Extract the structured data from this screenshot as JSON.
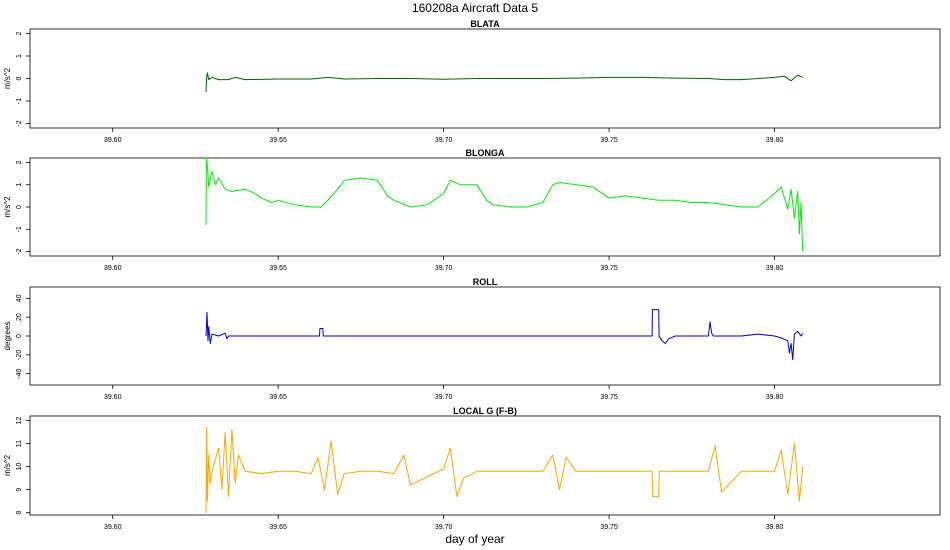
{
  "figure": {
    "title": "160208a   Aircraft Data 5",
    "xlabel": "day of year"
  },
  "colors": {
    "blata": "#006400",
    "blonga": "#00ee00",
    "roll": "#0000dd",
    "localg": "#ffa500",
    "axes": "#000000"
  },
  "chart_data": [
    {
      "type": "line",
      "title": "BLATA",
      "ylabel": "m/s^2",
      "xlim": [
        39.575,
        39.85
      ],
      "ylim": [
        -2.2,
        2.2
      ],
      "xticks": [
        39.6,
        39.65,
        39.7,
        39.75,
        39.8
      ],
      "xtick_labels": [
        "39.60",
        "39.65",
        "39.70",
        "39.75",
        "39.80"
      ],
      "yticks": [
        -2,
        -1,
        0,
        1,
        2
      ],
      "ytick_labels": [
        "-2",
        "-1",
        "0",
        "1",
        "2"
      ],
      "series": [
        {
          "x": [
            39.6282,
            39.6284,
            39.6286,
            39.629,
            39.63,
            39.632,
            39.635,
            39.637,
            39.64,
            39.65,
            39.66,
            39.665,
            39.67,
            39.68,
            39.69,
            39.7,
            39.71,
            39.72,
            39.73,
            39.74,
            39.75,
            39.76,
            39.77,
            39.78,
            39.785,
            39.79,
            39.795,
            39.8,
            39.803,
            39.805,
            39.807,
            39.8085
          ],
          "y": [
            -0.6,
            0.1,
            0.25,
            -0.05,
            0.05,
            -0.05,
            -0.05,
            0.05,
            -0.05,
            -0.02,
            -0.02,
            0.05,
            -0.02,
            0.0,
            0.0,
            -0.03,
            0.0,
            0.0,
            0.0,
            0.02,
            0.05,
            0.05,
            0.02,
            0.0,
            -0.05,
            -0.05,
            0.0,
            0.05,
            0.1,
            -0.1,
            0.15,
            0.05
          ]
        }
      ]
    },
    {
      "type": "line",
      "title": "BLONGA",
      "ylabel": "m/s^2",
      "xlim": [
        39.575,
        39.85
      ],
      "ylim": [
        -2.2,
        2.2
      ],
      "xticks": [
        39.6,
        39.65,
        39.7,
        39.75,
        39.8
      ],
      "xtick_labels": [
        "39.60",
        "39.65",
        "39.70",
        "39.75",
        "39.80"
      ],
      "yticks": [
        -2,
        -1,
        0,
        1,
        2
      ],
      "ytick_labels": [
        "-2",
        "-1",
        "0",
        "1",
        "2"
      ],
      "series": [
        {
          "x": [
            39.6282,
            39.6283,
            39.6286,
            39.629,
            39.63,
            39.631,
            39.632,
            39.634,
            39.636,
            39.64,
            39.643,
            39.645,
            39.648,
            39.65,
            39.655,
            39.66,
            39.663,
            39.665,
            39.668,
            39.67,
            39.675,
            39.68,
            39.683,
            39.685,
            39.69,
            39.695,
            39.698,
            39.7,
            39.702,
            39.705,
            39.71,
            39.713,
            39.715,
            39.72,
            39.725,
            39.73,
            39.733,
            39.735,
            39.74,
            39.745,
            39.748,
            39.75,
            39.755,
            39.76,
            39.765,
            39.77,
            39.775,
            39.78,
            39.785,
            39.79,
            39.795,
            39.8,
            39.802,
            39.804,
            39.805,
            39.806,
            39.807,
            39.8075,
            39.808,
            39.8085
          ],
          "y": [
            -0.8,
            2.2,
            1.8,
            0.9,
            1.6,
            1.0,
            1.3,
            0.8,
            0.7,
            0.8,
            0.6,
            0.4,
            0.2,
            0.3,
            0.1,
            0.0,
            0.0,
            0.3,
            0.8,
            1.2,
            1.3,
            1.2,
            0.5,
            0.3,
            0.0,
            0.1,
            0.4,
            0.6,
            1.2,
            1.0,
            1.0,
            0.3,
            0.1,
            0.0,
            0.0,
            0.2,
            1.0,
            1.1,
            1.0,
            0.9,
            0.6,
            0.4,
            0.5,
            0.4,
            0.3,
            0.3,
            0.2,
            0.2,
            0.1,
            0.0,
            0.0,
            0.6,
            0.9,
            -0.1,
            0.8,
            -0.5,
            0.7,
            -1.2,
            0.2,
            -2.0
          ]
        }
      ]
    },
    {
      "type": "line",
      "title": "ROLL",
      "ylabel": "degrees",
      "xlim": [
        39.575,
        39.85
      ],
      "ylim": [
        -52,
        52
      ],
      "xticks": [
        39.6,
        39.65,
        39.7,
        39.75,
        39.8
      ],
      "xtick_labels": [
        "39.60",
        "39.65",
        "39.70",
        "39.75",
        "39.80"
      ],
      "yticks": [
        -40,
        -20,
        0,
        20,
        40
      ],
      "ytick_labels": [
        "-40",
        "-20",
        "0",
        "20",
        "40"
      ],
      "series": [
        {
          "x": [
            39.6282,
            39.6285,
            39.6288,
            39.629,
            39.6295,
            39.63,
            39.632,
            39.634,
            39.6345,
            39.635,
            39.64,
            39.65,
            39.66,
            39.6625,
            39.6626,
            39.6635,
            39.6636,
            39.67,
            39.7,
            39.73,
            39.75,
            39.763,
            39.7631,
            39.765,
            39.7651,
            39.766,
            39.767,
            39.768,
            39.77,
            39.78,
            39.7805,
            39.781,
            39.7815,
            39.79,
            39.795,
            39.8,
            39.802,
            39.804,
            39.8045,
            39.805,
            39.8055,
            39.806,
            39.807,
            39.808,
            39.8085
          ],
          "y": [
            0,
            25,
            -5,
            10,
            -8,
            2,
            0,
            3,
            -3,
            0,
            0,
            0,
            0,
            0,
            8,
            8,
            0,
            0,
            0,
            0,
            0,
            0,
            28,
            28,
            0,
            -5,
            -8,
            -3,
            0,
            0,
            15,
            3,
            0,
            0,
            2,
            0,
            -2,
            -5,
            -18,
            -8,
            -25,
            2,
            5,
            0,
            3
          ]
        }
      ]
    },
    {
      "type": "line",
      "title": "LOCAL G (F-B)",
      "ylabel": "m/s^2",
      "xlim": [
        39.575,
        39.85
      ],
      "ylim": [
        7.9,
        12.2
      ],
      "xticks": [
        39.6,
        39.65,
        39.7,
        39.75,
        39.8
      ],
      "xtick_labels": [
        "39.60",
        "39.65",
        "39.70",
        "39.75",
        "39.80"
      ],
      "yticks": [
        8,
        9,
        10,
        11,
        12
      ],
      "ytick_labels": [
        "8",
        "9",
        "10",
        "11",
        "12"
      ],
      "series": [
        {
          "x": [
            39.6282,
            39.6284,
            39.6286,
            39.629,
            39.6295,
            39.63,
            39.632,
            39.633,
            39.634,
            39.635,
            39.636,
            39.637,
            39.638,
            39.64,
            39.645,
            39.65,
            39.655,
            39.66,
            39.662,
            39.664,
            39.666,
            39.668,
            39.67,
            39.675,
            39.68,
            39.685,
            39.688,
            39.69,
            39.7,
            39.702,
            39.704,
            39.706,
            39.71,
            39.72,
            39.73,
            39.733,
            39.735,
            39.737,
            39.74,
            39.75,
            39.76,
            39.763,
            39.7632,
            39.765,
            39.7652,
            39.77,
            39.78,
            39.782,
            39.784,
            39.79,
            39.795,
            39.8,
            39.802,
            39.804,
            39.806,
            39.8075,
            39.8085
          ],
          "y": [
            8.0,
            11.7,
            8.5,
            10.5,
            9.3,
            9.8,
            10.8,
            9.0,
            11.5,
            8.7,
            11.6,
            9.3,
            10.5,
            9.8,
            9.7,
            9.8,
            9.8,
            9.7,
            10.4,
            9.0,
            11.1,
            8.8,
            9.7,
            9.8,
            9.8,
            9.7,
            10.5,
            9.2,
            9.9,
            10.8,
            8.7,
            9.5,
            9.8,
            9.8,
            9.8,
            10.5,
            9.0,
            10.4,
            9.8,
            9.8,
            9.8,
            9.8,
            8.7,
            8.7,
            9.8,
            9.8,
            9.8,
            10.9,
            8.9,
            9.8,
            9.8,
            9.8,
            10.7,
            8.8,
            11.0,
            8.5,
            10.0
          ]
        }
      ]
    }
  ]
}
